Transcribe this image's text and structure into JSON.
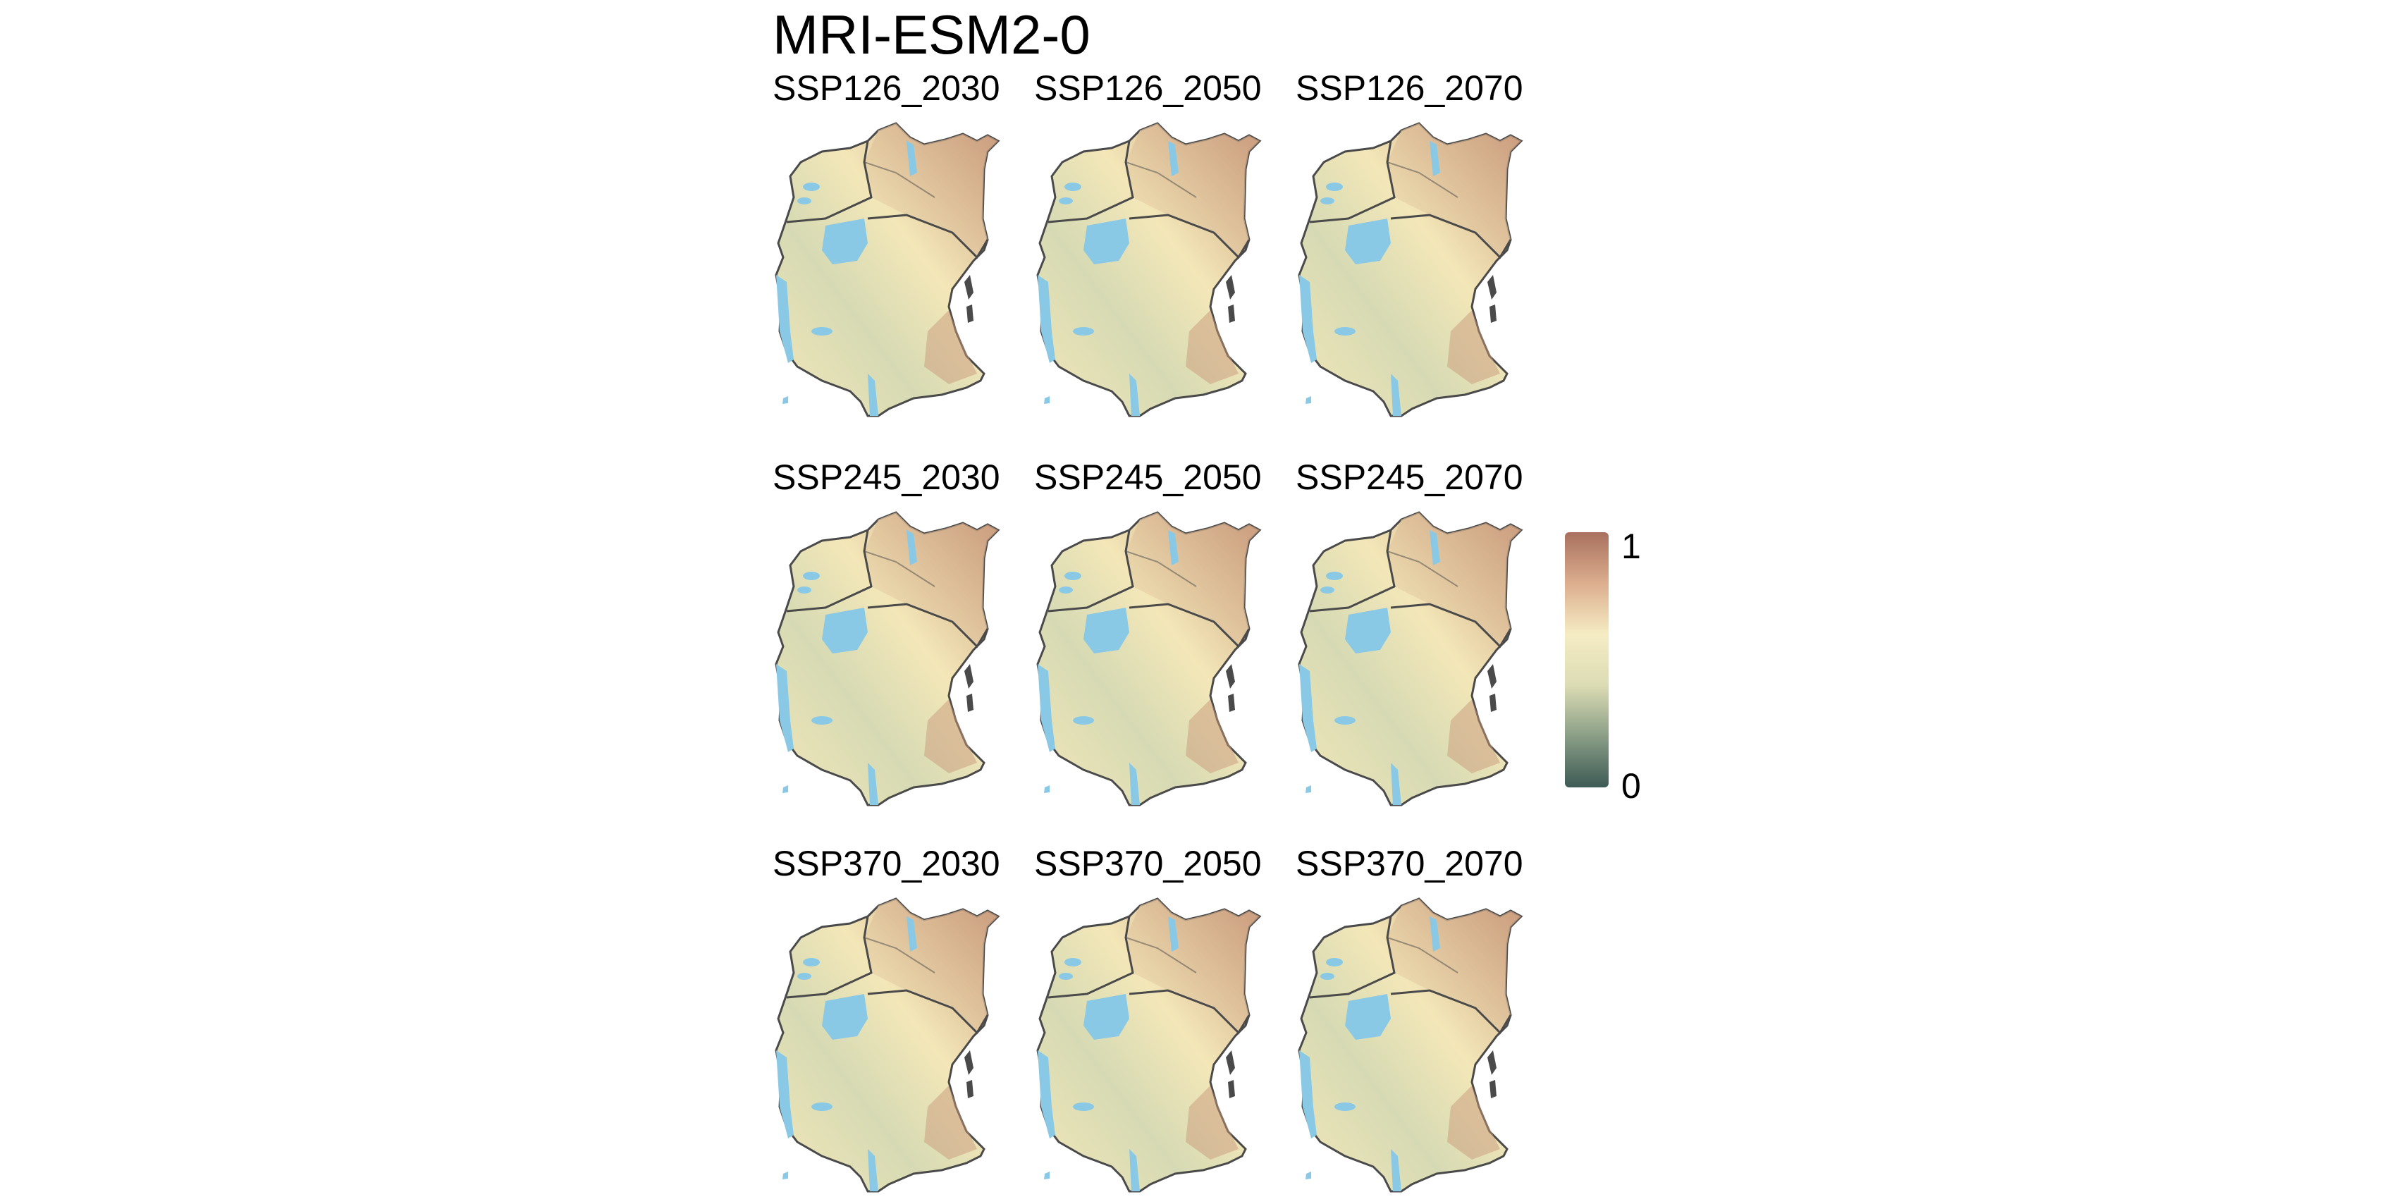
{
  "title": "MRI-ESM2-0",
  "panels": [
    {
      "label": "SSP126_2030"
    },
    {
      "label": "SSP126_2050"
    },
    {
      "label": "SSP126_2070"
    },
    {
      "label": "SSP245_2030"
    },
    {
      "label": "SSP245_2050"
    },
    {
      "label": "SSP245_2070"
    },
    {
      "label": "SSP370_2030"
    },
    {
      "label": "SSP370_2050"
    },
    {
      "label": "SSP370_2070"
    }
  ],
  "legend": {
    "max_label": "1",
    "min_label": "0",
    "colors": [
      "#3d5a55",
      "#8a9e86",
      "#dcdcb4",
      "#f5ecc4",
      "#dcae8e",
      "#a8705e"
    ]
  },
  "map_colors": {
    "water": "#89c9e6",
    "border": "#4a4a4a",
    "land_low": "#d6dab4",
    "land_mid": "#f3e7b8",
    "land_high": "#c99a7c"
  }
}
